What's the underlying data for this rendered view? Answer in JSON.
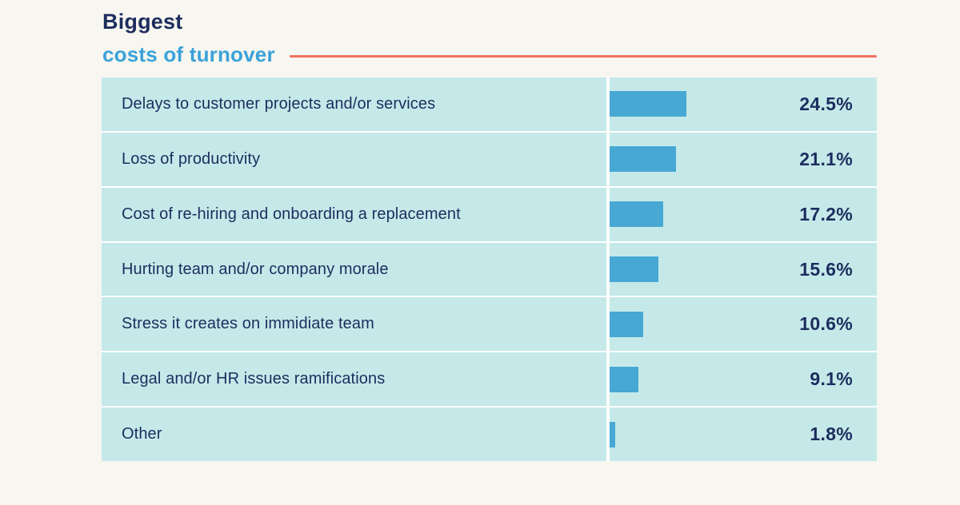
{
  "page": {
    "background": "#f7f6f0"
  },
  "header": {
    "title_line1": "Biggest",
    "title_line2": "costs of turnover"
  },
  "colors": {
    "navy": "#1c2d5e",
    "sky_blue": "#3aa2d9",
    "coral_line": "#f0725f",
    "row_background": "#c5e9e9",
    "bar_blue": "#47a8d3",
    "separator_white": "#ffffff"
  },
  "chart_data": {
    "type": "bar",
    "orientation": "horizontal",
    "title": "Biggest costs of turnover",
    "categories": [
      "Delays to customer projects and/or services",
      "Loss of productivity",
      "Cost of re-hiring and onboarding a replacement",
      "Hurting team and/or company morale",
      "Stress it creates on immidiate team",
      "Legal and/or HR issues ramifications",
      "Other"
    ],
    "values": [
      24.5,
      21.1,
      17.2,
      15.6,
      10.6,
      9.1,
      1.8
    ],
    "value_labels": [
      "24.5%",
      "21.1%",
      "17.2%",
      "15.6%",
      "10.6%",
      "9.1%",
      "1.8%"
    ],
    "xlabel": "",
    "ylabel": "",
    "xlim": [
      0,
      25
    ],
    "legend": "none",
    "grid": "none"
  }
}
